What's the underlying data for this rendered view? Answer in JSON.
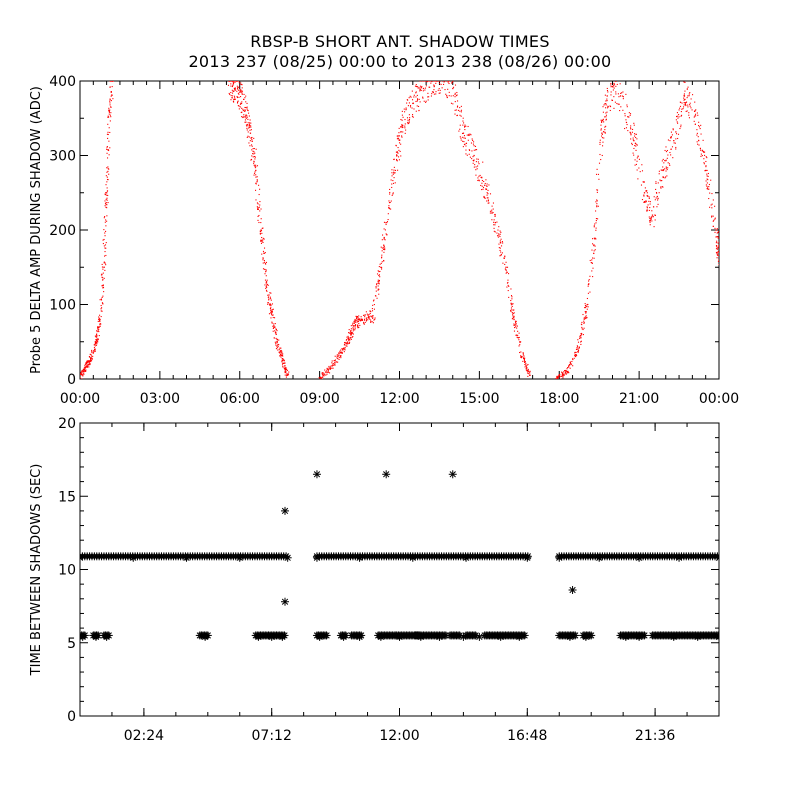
{
  "title": "RBSP-B SHORT ANT. SHADOW TIMES",
  "subtitle": "2013 237 (08/25) 00:00 to 2013 238 (08/26) 00:00",
  "colors": {
    "top_points": "#ff0000",
    "bottom_points": "#000000",
    "axes": "#000000"
  },
  "chart_data": [
    {
      "type": "scatter",
      "title": "",
      "xlabel": "",
      "ylabel": "Probe 5 DELTA AMP DURING SHADOW (ADC)",
      "xlim": [
        0,
        24
      ],
      "ylim": [
        0,
        400
      ],
      "x_unit": "hours (UT)",
      "xticks": [
        0,
        3,
        6,
        9,
        12,
        15,
        18,
        21,
        24
      ],
      "xtick_labels": [
        "00:00",
        "03:00",
        "06:00",
        "09:00",
        "12:00",
        "15:00",
        "18:00",
        "21:00",
        "00:00"
      ],
      "yticks": [
        0,
        100,
        200,
        300,
        400
      ],
      "ytick_labels": [
        "0",
        "100",
        "200",
        "300",
        "400"
      ],
      "marker": "dot",
      "color": "#ff0000",
      "series": [
        {
          "name": "",
          "points": [
            [
              0.0,
              2
            ],
            [
              0.2,
              15
            ],
            [
              0.4,
              25
            ],
            [
              0.6,
              50
            ],
            [
              0.75,
              80
            ],
            [
              0.9,
              150
            ],
            [
              1.0,
              250
            ],
            [
              1.1,
              360
            ],
            [
              1.2,
              400
            ]
          ]
        },
        {
          "name": "",
          "points": [
            [
              5.6,
              400
            ],
            [
              5.8,
              390
            ],
            [
              6.0,
              385
            ],
            [
              6.2,
              360
            ],
            [
              6.4,
              330
            ],
            [
              6.6,
              280
            ],
            [
              6.8,
              200
            ],
            [
              7.0,
              130
            ],
            [
              7.2,
              90
            ],
            [
              7.4,
              50
            ],
            [
              7.6,
              25
            ],
            [
              7.8,
              5
            ]
          ]
        },
        {
          "name": "",
          "points": [
            [
              9.0,
              0
            ],
            [
              9.4,
              15
            ],
            [
              9.8,
              35
            ],
            [
              10.1,
              55
            ],
            [
              10.3,
              75
            ],
            [
              10.6,
              80
            ],
            [
              11.0,
              85
            ],
            [
              11.3,
              150
            ],
            [
              11.6,
              230
            ],
            [
              11.9,
              300
            ],
            [
              12.1,
              340
            ],
            [
              12.5,
              370
            ],
            [
              12.9,
              390
            ],
            [
              13.4,
              400
            ],
            [
              14.0,
              390
            ],
            [
              14.4,
              330
            ],
            [
              14.8,
              300
            ],
            [
              15.2,
              260
            ],
            [
              15.6,
              210
            ],
            [
              16.0,
              150
            ],
            [
              16.3,
              80
            ],
            [
              16.6,
              30
            ],
            [
              16.9,
              5
            ]
          ]
        },
        {
          "name": "",
          "points": [
            [
              17.9,
              0
            ],
            [
              18.3,
              10
            ],
            [
              18.7,
              40
            ],
            [
              19.0,
              90
            ],
            [
              19.3,
              180
            ],
            [
              19.6,
              330
            ],
            [
              19.8,
              380
            ],
            [
              20.3,
              380
            ],
            [
              20.8,
              320
            ],
            [
              21.2,
              250
            ],
            [
              21.5,
              220
            ],
            [
              21.9,
              280
            ],
            [
              22.3,
              320
            ],
            [
              22.7,
              380
            ],
            [
              23.1,
              360
            ],
            [
              23.5,
              280
            ],
            [
              23.9,
              200
            ],
            [
              24.0,
              160
            ]
          ]
        }
      ]
    },
    {
      "type": "scatter",
      "title": "",
      "xlabel": "",
      "ylabel": "TIME BETWEEN SHADOWS (SEC)",
      "xlim": [
        0,
        24
      ],
      "ylim": [
        0,
        20
      ],
      "x_unit": "hours (UT)",
      "xticks": [
        2.4,
        7.2,
        12.0,
        16.8,
        21.6
      ],
      "xtick_labels": [
        "02:24",
        "07:12",
        "12:00",
        "16:48",
        "21:36"
      ],
      "yticks": [
        0,
        5,
        10,
        15,
        20
      ],
      "ytick_labels": [
        "0",
        "5",
        "10",
        "15",
        "20"
      ],
      "marker": "asterisk",
      "color": "#000000",
      "series": [
        {
          "name": "",
          "points": [
            [
              0.1,
              5.4
            ],
            [
              0.6,
              5.4
            ],
            [
              1.0,
              5.4
            ],
            [
              4.7,
              5.4
            ],
            [
              6.7,
              5.4
            ],
            [
              7.2,
              5.4
            ],
            [
              7.6,
              5.4
            ],
            [
              9.0,
              5.4
            ],
            [
              9.9,
              5.4
            ],
            [
              10.5,
              5.4
            ],
            [
              11.3,
              5.4
            ],
            [
              12.0,
              5.4
            ],
            [
              12.8,
              5.4
            ],
            [
              13.5,
              5.4
            ],
            [
              14.4,
              5.4
            ],
            [
              15.0,
              5.4
            ],
            [
              15.8,
              5.4
            ],
            [
              16.5,
              5.4
            ],
            [
              18.4,
              5.4
            ],
            [
              19.0,
              5.4
            ],
            [
              20.5,
              5.4
            ],
            [
              21.0,
              5.4
            ],
            [
              22.3,
              5.4
            ],
            [
              23.2,
              5.4
            ],
            [
              24.0,
              5.4
            ]
          ]
        },
        {
          "name": "",
          "points": [
            [
              7.7,
              7.8
            ],
            [
              7.7,
              14.0
            ],
            [
              8.9,
              16.5
            ],
            [
              11.5,
              16.5
            ],
            [
              14.0,
              16.5
            ],
            [
              18.5,
              8.6
            ]
          ]
        },
        {
          "name": "",
          "points": [
            [
              0.0,
              10.8
            ],
            [
              2.0,
              10.8
            ],
            [
              4.0,
              10.8
            ],
            [
              6.0,
              10.8
            ],
            [
              7.8,
              10.8
            ],
            [
              8.9,
              10.8
            ],
            [
              10.5,
              10.8
            ],
            [
              12.5,
              10.8
            ],
            [
              14.5,
              10.8
            ],
            [
              16.8,
              10.8
            ],
            [
              18.0,
              10.8
            ],
            [
              19.5,
              10.8
            ],
            [
              21.0,
              10.8
            ],
            [
              22.5,
              10.8
            ],
            [
              24.0,
              10.8
            ]
          ]
        }
      ]
    }
  ]
}
